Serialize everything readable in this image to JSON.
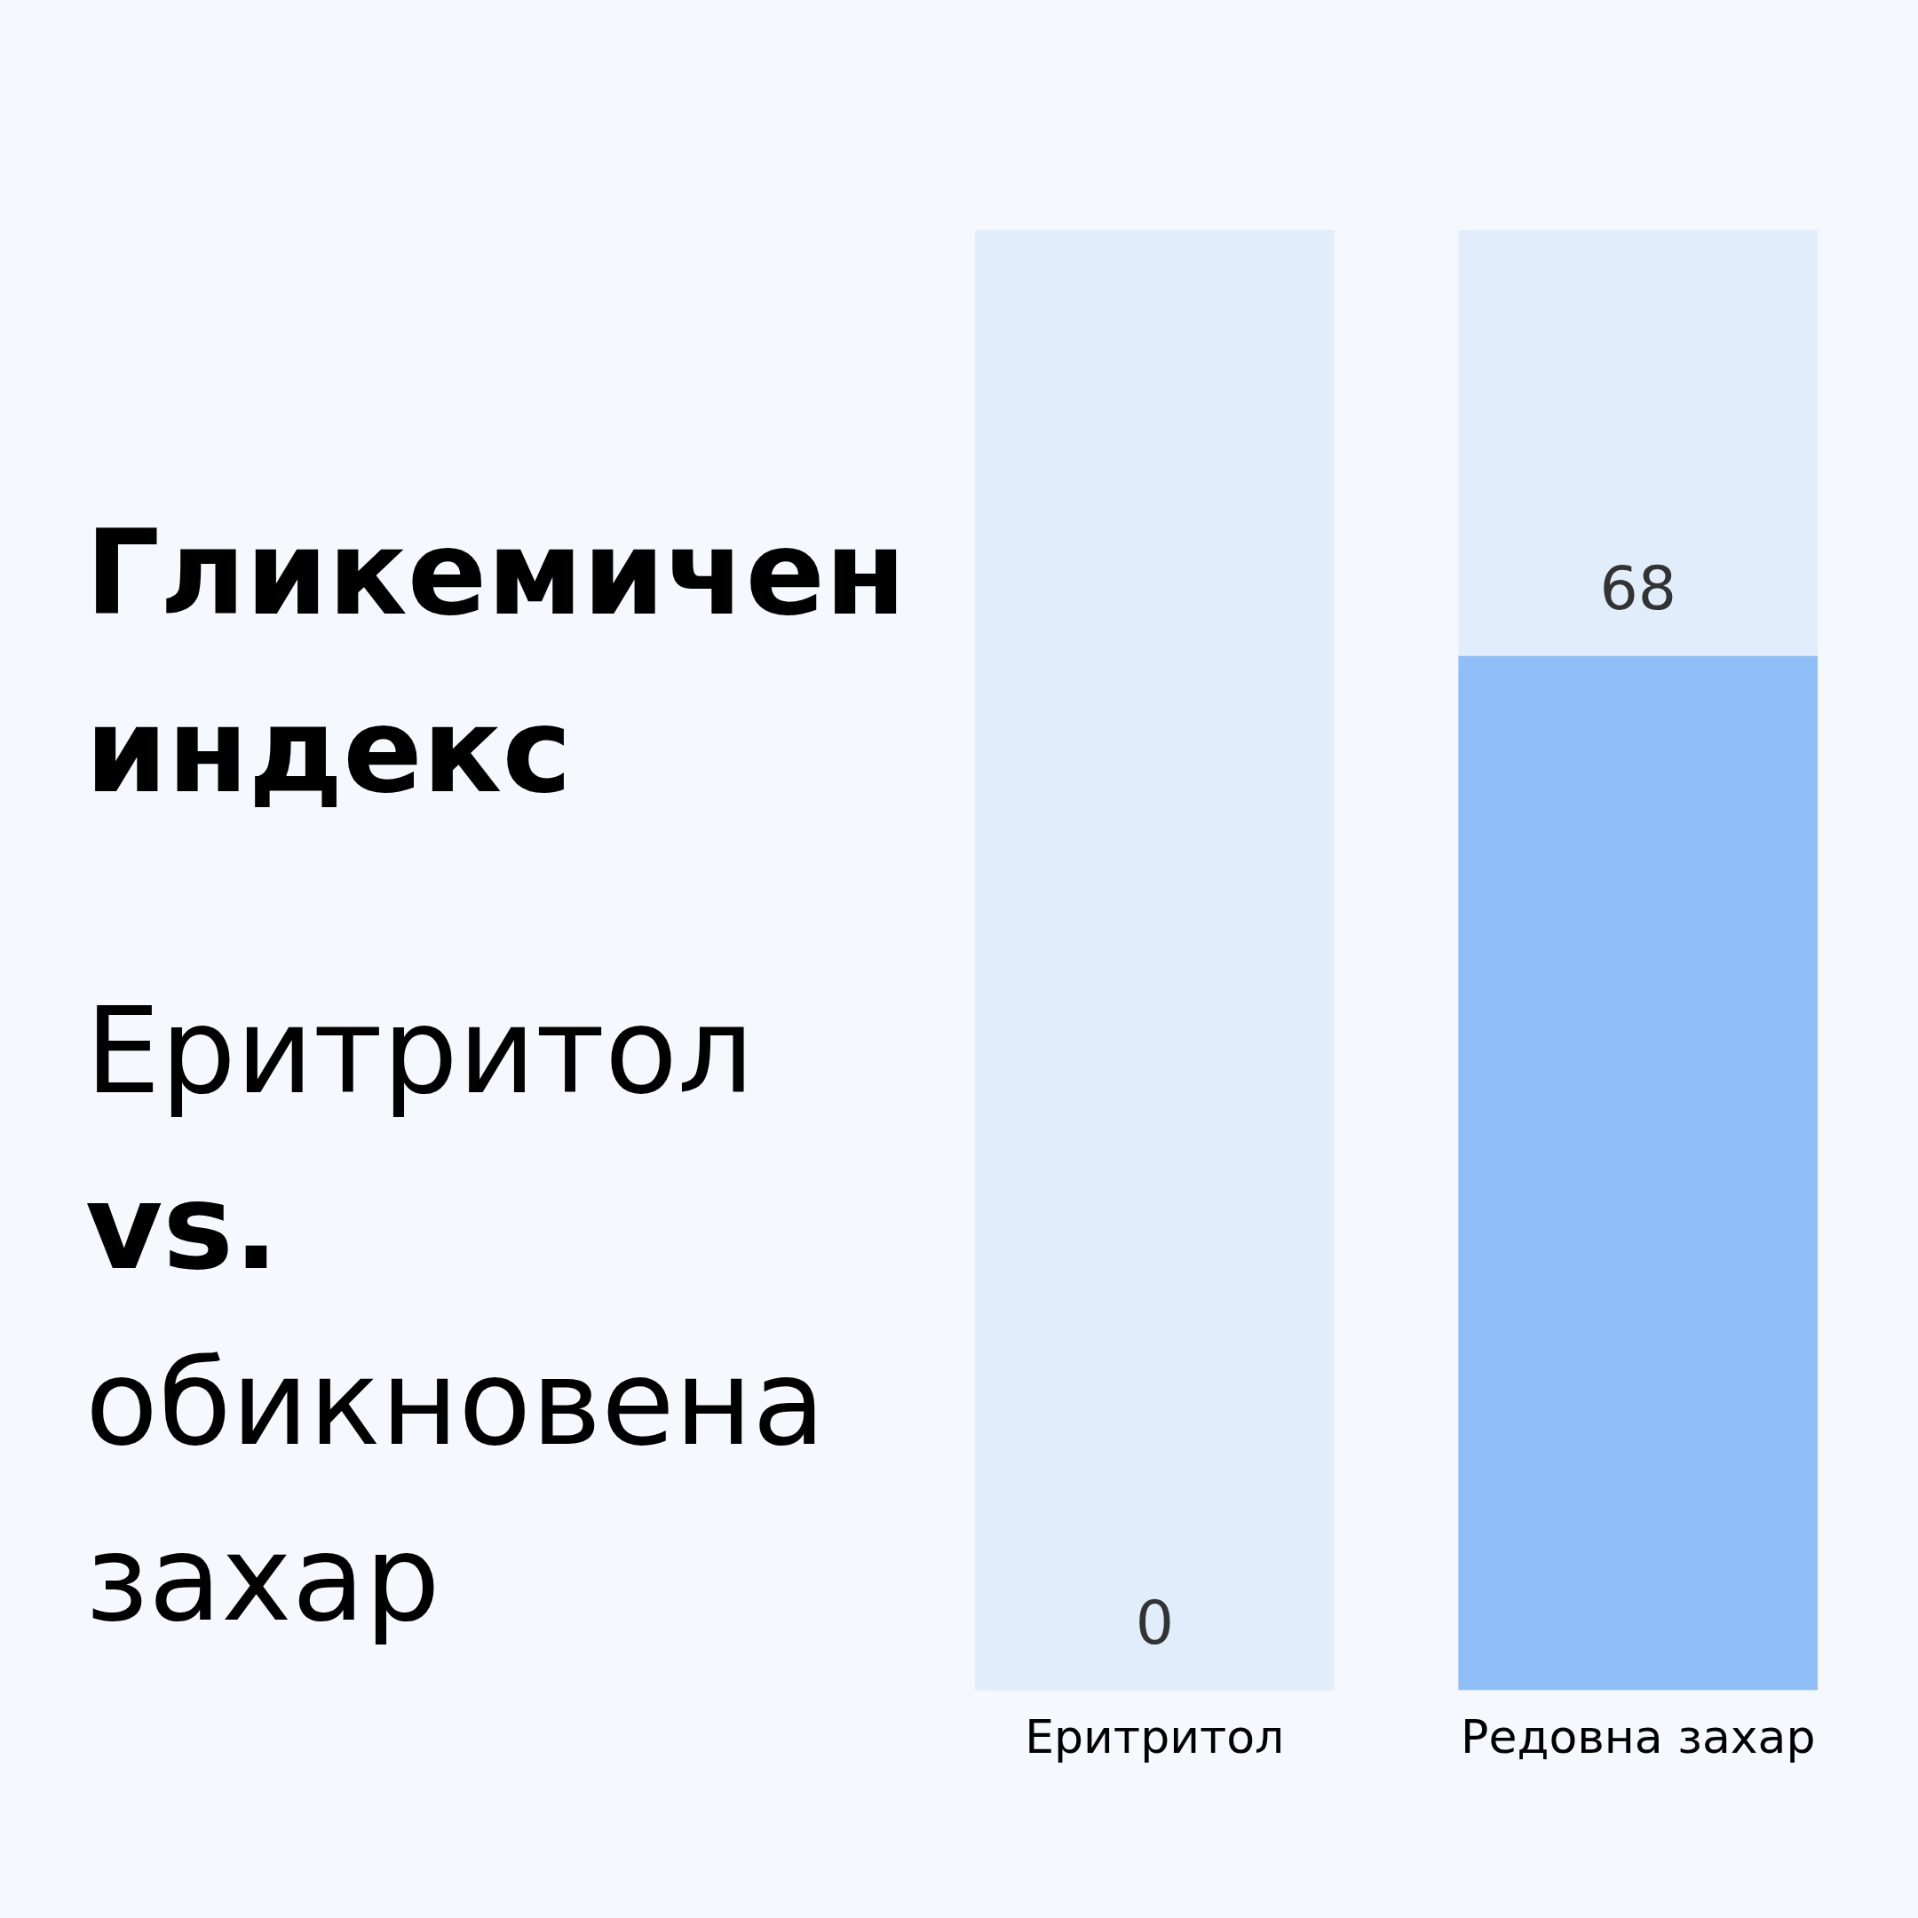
{
  "chart_data": {
    "type": "bar",
    "title": "Гликемичен индекс",
    "subtitle": "Еритритол vs. обикновена захар",
    "categories": [
      "Еритритол",
      "Редовна захар"
    ],
    "values": [
      0,
      68
    ],
    "color": "#90bef8",
    "ylim": [
      0,
      96
    ],
    "data_labels": true,
    "bands": [
      {
        "axis": "x",
        "from": "Еритритол",
        "to": "Еритритол",
        "color": "#e1edfa"
      },
      {
        "axis": "x",
        "from": "Редовна захар",
        "to": "Редовна захар",
        "color": "#e1edfa"
      }
    ]
  }
}
